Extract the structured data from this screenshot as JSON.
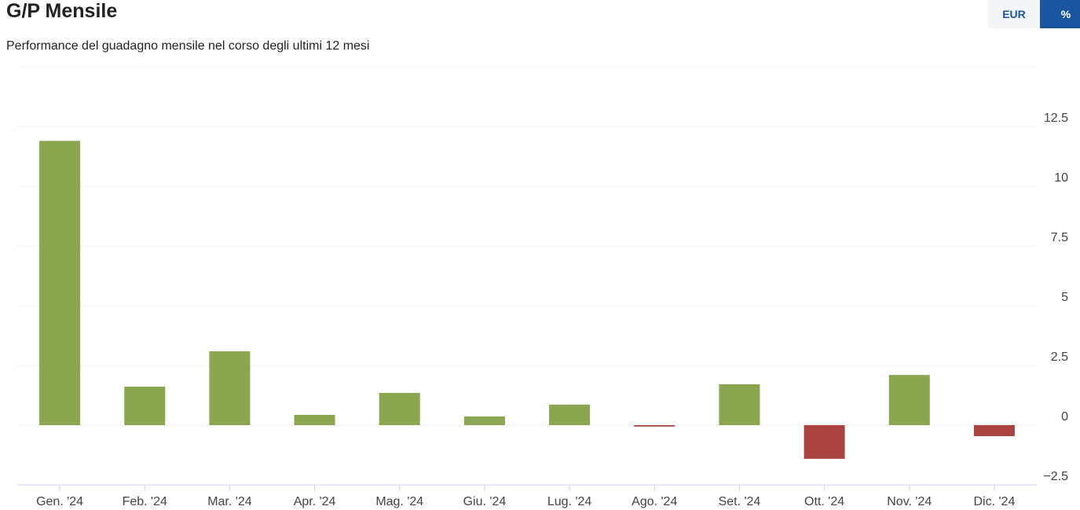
{
  "header": {
    "title": "G/P Mensile",
    "subtitle": "Performance del guadagno mensile nel corso degli ultimi 12 mesi"
  },
  "buttons": [
    {
      "label": "EUR",
      "active": false
    },
    {
      "label": "%",
      "active": true
    }
  ],
  "chart_data": {
    "type": "bar",
    "categories": [
      "Gen. '24",
      "Feb. '24",
      "Mar. '24",
      "Apr. '24",
      "Mag. '24",
      "Giu. '24",
      "Lug. '24",
      "Ago. '24",
      "Set. '24",
      "Ott. '24",
      "Nov. '24",
      "Dic. '24"
    ],
    "values": [
      11.9,
      1.61,
      3.09,
      0.43,
      1.35,
      0.36,
      0.86,
      -0.06,
      1.71,
      -1.41,
      2.1,
      -0.46
    ],
    "colors": {
      "positive": "#8aa64f",
      "negative": "#a94442"
    },
    "ylim": [
      -2.5,
      15
    ],
    "yticks": [
      {
        "value": -2.5,
        "label": "−2.5"
      },
      0,
      2.5,
      5,
      7.5,
      10,
      12.5
    ],
    "grid": true
  }
}
